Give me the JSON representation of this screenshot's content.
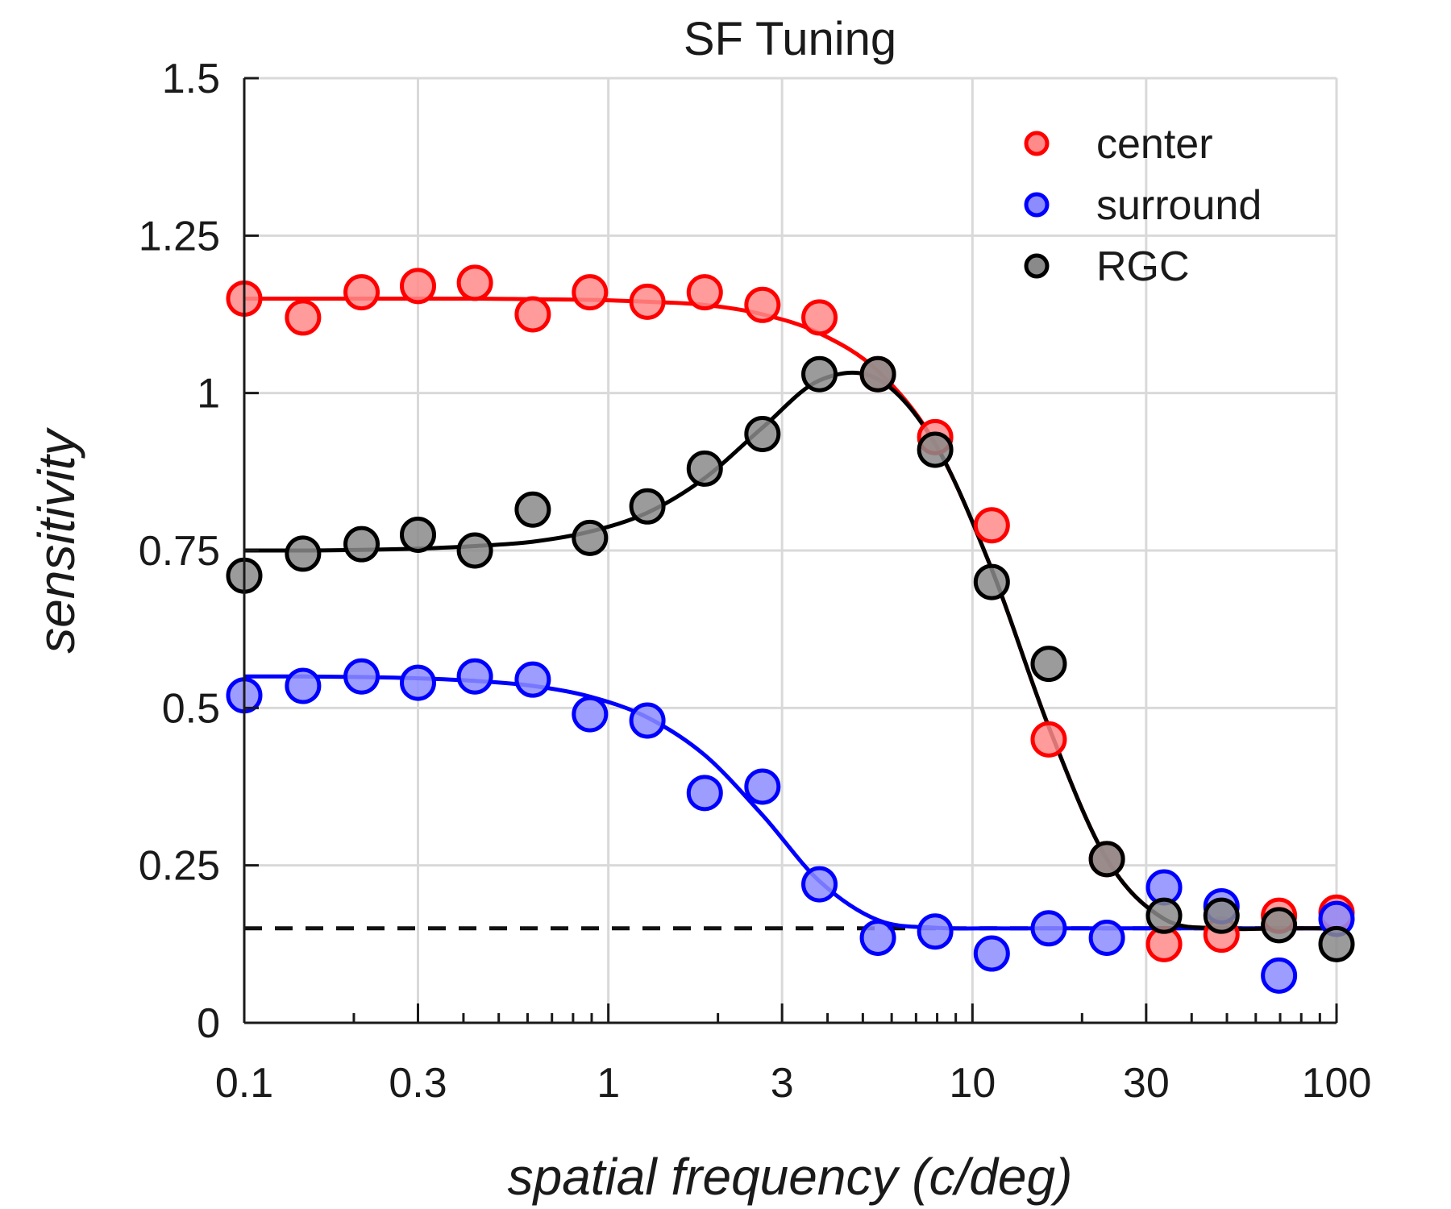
{
  "chart_data": {
    "type": "scatter",
    "title": "SF Tuning",
    "xlabel": "spatial frequency (c/deg)",
    "ylabel": "sensitivity",
    "xscale": "log",
    "xlim": [
      0.1,
      100
    ],
    "ylim": [
      0,
      1.5
    ],
    "xticks": [
      0.1,
      0.3,
      1,
      3,
      10,
      30,
      100
    ],
    "xtick_labels": [
      "0.1",
      "0.3",
      "1",
      "3",
      "10",
      "30",
      "100"
    ],
    "yticks": [
      0,
      0.25,
      0.5,
      0.75,
      1,
      1.25,
      1.5
    ],
    "ytick_labels": [
      "0",
      "0.25",
      "0.5",
      "0.75",
      "1",
      "1.25",
      "1.5"
    ],
    "grid": true,
    "legend_position": "top-right",
    "baseline": 0.15,
    "x": [
      0.1,
      0.145,
      0.21,
      0.3,
      0.43,
      0.62,
      0.89,
      1.28,
      1.84,
      2.65,
      3.8,
      5.5,
      7.9,
      11.3,
      16.2,
      23.4,
      33.6,
      48.3,
      69.5,
      100
    ],
    "series": [
      {
        "name": "center",
        "color": "#ff0000",
        "fill": "#ff8a8a",
        "values": [
          1.15,
          1.12,
          1.16,
          1.17,
          1.175,
          1.125,
          1.16,
          1.145,
          1.16,
          1.14,
          1.12,
          1.03,
          0.93,
          0.79,
          0.45,
          0.26,
          0.125,
          0.14,
          0.17,
          0.175
        ],
        "fit": [
          1.15,
          1.15,
          1.15,
          1.15,
          1.15,
          1.149,
          1.148,
          1.145,
          1.14,
          1.125,
          1.095,
          1.035,
          0.92,
          0.72,
          0.47,
          0.26,
          0.165,
          0.15,
          0.15,
          0.15
        ]
      },
      {
        "name": "surround",
        "color": "#0000ff",
        "fill": "#8c8cff",
        "values": [
          0.52,
          0.535,
          0.55,
          0.54,
          0.55,
          0.545,
          0.49,
          0.48,
          0.365,
          0.375,
          0.22,
          0.135,
          0.145,
          0.11,
          0.15,
          0.135,
          0.215,
          0.185,
          0.075,
          0.165
        ],
        "fit": [
          0.55,
          0.55,
          0.549,
          0.547,
          0.543,
          0.535,
          0.518,
          0.485,
          0.425,
          0.33,
          0.225,
          0.163,
          0.151,
          0.15,
          0.15,
          0.15,
          0.15,
          0.15,
          0.15,
          0.15
        ]
      },
      {
        "name": "RGC",
        "color": "#000000",
        "fill": "#8a8a8a",
        "values": [
          0.71,
          0.745,
          0.76,
          0.775,
          0.75,
          0.815,
          0.77,
          0.82,
          0.88,
          0.935,
          1.03,
          1.03,
          0.91,
          0.7,
          0.57,
          0.26,
          0.17,
          0.17,
          0.155,
          0.125
        ],
        "fit": [
          0.75,
          0.75,
          0.751,
          0.753,
          0.757,
          0.764,
          0.78,
          0.81,
          0.865,
          0.945,
          1.02,
          1.022,
          0.919,
          0.72,
          0.47,
          0.26,
          0.165,
          0.15,
          0.15,
          0.15
        ]
      }
    ]
  }
}
